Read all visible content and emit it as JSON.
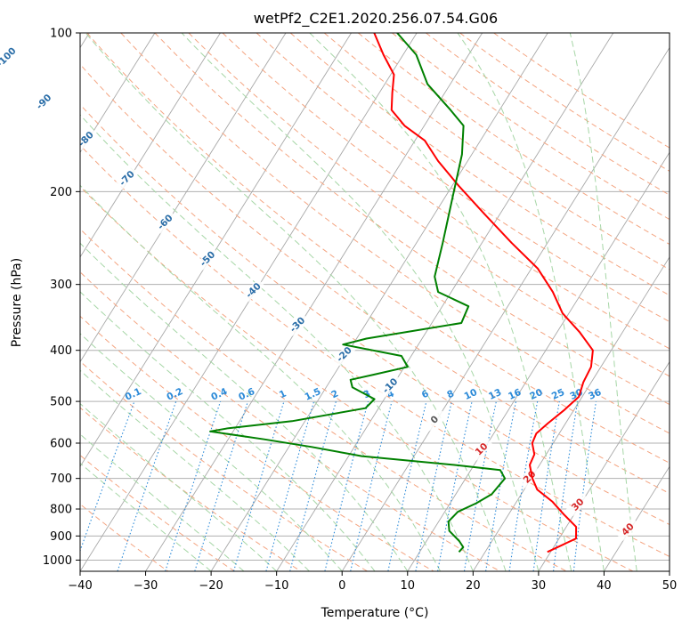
{
  "chart_data": {
    "type": "line",
    "title": "wetPf2_C2E1.2020.256.07.54.G06",
    "xlabel": "Temperature (°C)",
    "ylabel": "Pressure (hPa)",
    "xlim": [
      -40,
      50
    ],
    "ylim": [
      1050,
      100
    ],
    "y_scale": "log",
    "x_ticks": [
      "−40",
      "−30",
      "−20",
      "−10",
      "0",
      "10",
      "20",
      "30",
      "40",
      "50"
    ],
    "y_ticks": [
      "100",
      "200",
      "300",
      "400",
      "500",
      "600",
      "700",
      "800",
      "900",
      "1000"
    ],
    "isotherm_labels": [
      "-100",
      "-90",
      "-80",
      "-70",
      "-60",
      "-50",
      "-40",
      "-30",
      "-20",
      "-10",
      "0",
      "10",
      "20",
      "30",
      "40"
    ],
    "mixing_ratio_labels": [
      "0.1",
      "0.2",
      "0.4",
      "0.6",
      "1",
      "1.5",
      "2",
      "3",
      "4",
      "6",
      "8",
      "10",
      "13",
      "16",
      "20",
      "25",
      "30",
      "36"
    ],
    "colors": {
      "temperature": "#ff0000",
      "dewpoint": "#008000",
      "isotherm": "#a8a8a8",
      "dry_adiabat": "#f4a582",
      "moist_adiabat": "#a6d6a6",
      "mixing_ratio": "#2b8ad8",
      "isotherm_label_cold": "#2b6ea8",
      "isotherm_label_warm": "#d62728"
    },
    "series": [
      {
        "name": "temperature",
        "points": [
          [
            29.5,
            965
          ],
          [
            32.6,
            910
          ],
          [
            31.5,
            865
          ],
          [
            28.5,
            820
          ],
          [
            25.5,
            775
          ],
          [
            22.0,
            735
          ],
          [
            20.2,
            700
          ],
          [
            18.5,
            660
          ],
          [
            18.2,
            630
          ],
          [
            16.8,
            600
          ],
          [
            16.5,
            575
          ],
          [
            17.3,
            550
          ],
          [
            18.5,
            520
          ],
          [
            19.5,
            490
          ],
          [
            18.8,
            460
          ],
          [
            18.5,
            430
          ],
          [
            17.2,
            400
          ],
          [
            13.5,
            370
          ],
          [
            9.0,
            340
          ],
          [
            5.5,
            310
          ],
          [
            1.0,
            280
          ],
          [
            -5.5,
            250
          ],
          [
            -12.5,
            220
          ],
          [
            -19.0,
            195
          ],
          [
            -24.5,
            175
          ],
          [
            -28.5,
            160
          ],
          [
            -33.0,
            150
          ],
          [
            -36.5,
            140
          ],
          [
            -38.0,
            130
          ],
          [
            -39.5,
            120
          ],
          [
            -43.0,
            110
          ],
          [
            -46.5,
            100
          ]
        ]
      },
      {
        "name": "dewpoint",
        "points": [
          [
            16.0,
            965
          ],
          [
            16.2,
            945
          ],
          [
            15.0,
            920
          ],
          [
            12.5,
            880
          ],
          [
            11.5,
            845
          ],
          [
            12.0,
            810
          ],
          [
            14.0,
            780
          ],
          [
            15.5,
            750
          ],
          [
            16.0,
            700
          ],
          [
            14.5,
            675
          ],
          [
            7.0,
            660
          ],
          [
            -8.0,
            635
          ],
          [
            -16.5,
            610
          ],
          [
            -24.5,
            590
          ],
          [
            -33.5,
            570
          ],
          [
            -31.0,
            562
          ],
          [
            -22.0,
            545
          ],
          [
            -12.0,
            515
          ],
          [
            -11.5,
            495
          ],
          [
            -16.0,
            470
          ],
          [
            -17.0,
            455
          ],
          [
            -14.0,
            445
          ],
          [
            -9.5,
            430
          ],
          [
            -11.5,
            410
          ],
          [
            -21.5,
            390
          ],
          [
            -18.5,
            380
          ],
          [
            -5.5,
            355
          ],
          [
            -6.0,
            330
          ],
          [
            -12.0,
            310
          ],
          [
            -14.0,
            290
          ],
          [
            -16.0,
            250
          ],
          [
            -18.5,
            210
          ],
          [
            -21.5,
            170
          ],
          [
            -24.0,
            150
          ],
          [
            -27.5,
            140
          ],
          [
            -33.5,
            125
          ],
          [
            -38.0,
            110
          ],
          [
            -43.0,
            100
          ]
        ]
      }
    ]
  }
}
